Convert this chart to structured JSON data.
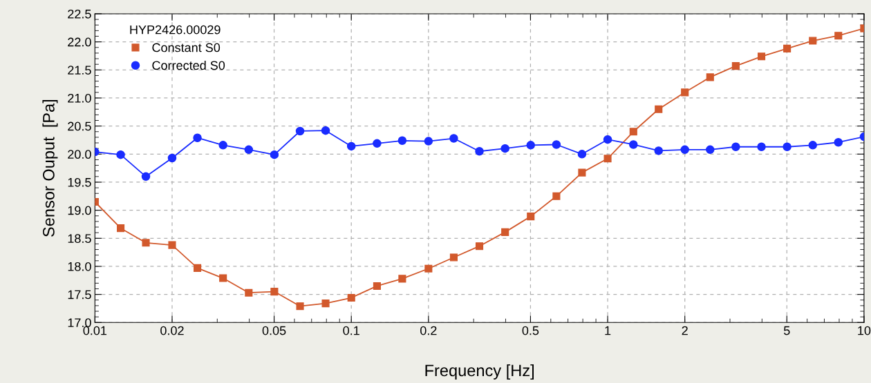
{
  "chart_data": {
    "type": "line",
    "xlabel": "Frequency [Hz]",
    "ylabel": "Sensor Ouput  [Pa]",
    "legend_title": "HYP2426.00029",
    "legend": "top left",
    "log": "x",
    "grid": true,
    "x": [
      0.01,
      0.0126,
      0.0158,
      0.02,
      0.0251,
      0.0316,
      0.0398,
      0.0501,
      0.0631,
      0.0794,
      0.1,
      0.126,
      0.158,
      0.2,
      0.251,
      0.316,
      0.398,
      0.501,
      0.631,
      0.794,
      1,
      1.26,
      1.58,
      2,
      2.51,
      3.16,
      3.98,
      5.01,
      6.31,
      7.94,
      10
    ],
    "xlim": [
      0.01,
      10
    ],
    "xticks": [
      0.01,
      0.02,
      0.05,
      0.1,
      0.2,
      0.5,
      1,
      2,
      5,
      10
    ],
    "ylim": [
      17.0,
      22.5
    ],
    "yticks": [
      {
        "value": 17.0,
        "label": "17.0"
      },
      {
        "value": 17.5,
        "label": "17.5"
      },
      {
        "value": 18.0,
        "label": "18.0"
      },
      {
        "value": 18.5,
        "label": "18.5"
      },
      {
        "value": 19.0,
        "label": "19.0"
      },
      {
        "value": 19.5,
        "label": "19.5"
      },
      {
        "value": 20.0,
        "label": "20.0"
      },
      {
        "value": 20.5,
        "label": "20.5"
      },
      {
        "value": 21.0,
        "label": "21.0"
      },
      {
        "value": 21.5,
        "label": "21.5"
      },
      {
        "value": 22.0,
        "label": "22.0"
      },
      {
        "value": 22.5,
        "label": "22.5"
      }
    ],
    "series": [
      {
        "name": "Constant S0",
        "color": "#d2592c",
        "marker": "square",
        "values": [
          19.15,
          18.68,
          18.42,
          18.38,
          17.97,
          17.79,
          17.53,
          17.55,
          17.29,
          17.34,
          17.44,
          17.65,
          17.78,
          17.96,
          18.16,
          18.36,
          18.61,
          18.89,
          19.25,
          19.67,
          19.92,
          20.4,
          20.8,
          21.1,
          21.37,
          21.57,
          21.74,
          21.88,
          22.02,
          22.11,
          22.24
        ]
      },
      {
        "name": "Corrected S0",
        "color": "#1a2cff",
        "marker": "circle",
        "values": [
          20.04,
          19.99,
          19.6,
          19.93,
          20.29,
          20.16,
          20.08,
          19.99,
          20.41,
          20.42,
          20.14,
          20.19,
          20.24,
          20.23,
          20.28,
          20.05,
          20.1,
          20.16,
          20.17,
          20.0,
          20.26,
          20.17,
          20.06,
          20.08,
          20.08,
          20.13,
          20.13,
          20.13,
          20.16,
          20.21,
          20.31
        ]
      }
    ]
  }
}
